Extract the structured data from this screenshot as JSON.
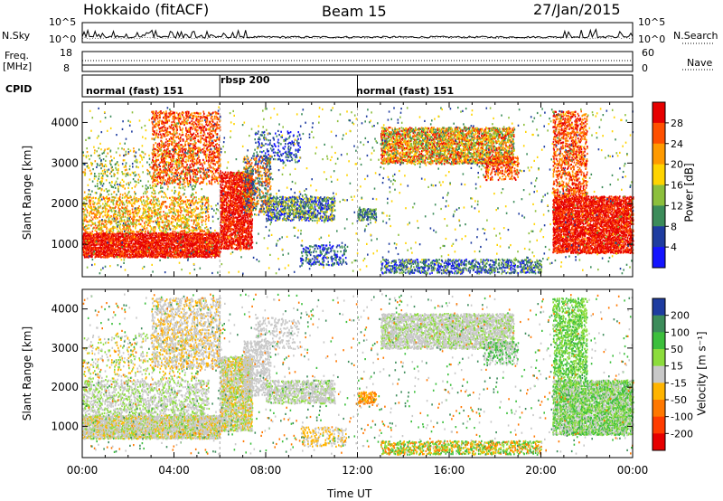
{
  "header": {
    "station": "Hokkaido (fitACF)",
    "beam": "Beam 15",
    "date": "27/Jan/2015"
  },
  "strip_labels": {
    "nsky": "N.Sky",
    "nsearch": "N.Search",
    "freq": "Freq.",
    "freq_unit": "[MHz]",
    "nave": "Nave",
    "cpid": "CPID",
    "nsky_ticks": [
      "10^5",
      "10^0"
    ],
    "nsearch_ticks": [
      "10^5",
      "10^0"
    ],
    "freq_ticks": [
      "18",
      "8"
    ],
    "nave_ticks": [
      "60",
      "0"
    ]
  },
  "cpid_segments": [
    {
      "label": "normal (fast) 151"
    },
    {
      "label": "rbsp 200"
    },
    {
      "label": "normal (fast) 151"
    }
  ],
  "chart_data": [
    {
      "type": "heatmap",
      "name": "power",
      "ylabel": "Slant Range [km]",
      "y_ticks": [
        "1000",
        "2000",
        "3000",
        "4000"
      ],
      "ylim": [
        200,
        4500
      ],
      "colorbar_label": "Power [dB]",
      "colorbar_ticks": [
        "28",
        "24",
        "20",
        "16",
        "12",
        "8",
        "4"
      ],
      "colorbar_colors": [
        "#e60000",
        "#ff5000",
        "#ff9a00",
        "#ffd400",
        "#8cbf3c",
        "#3c8c5a",
        "#1e3ca0",
        "#1414ff"
      ]
    },
    {
      "type": "heatmap",
      "name": "velocity",
      "ylabel": "Slant Range [km]",
      "y_ticks": [
        "1000",
        "2000",
        "3000",
        "4000"
      ],
      "ylim": [
        200,
        4500
      ],
      "colorbar_label": "Velocity [m s⁻¹]",
      "colorbar_ticks": [
        "200",
        "100",
        "50",
        "15",
        "-15",
        "-50",
        "-100",
        "-200"
      ],
      "colorbar_colors": [
        "#1e3ca0",
        "#3c8c5a",
        "#3cbf3c",
        "#8cdc3c",
        "#c8c8c8",
        "#ffb400",
        "#ff7800",
        "#ff3c00",
        "#e60000"
      ]
    }
  ],
  "time_axis": {
    "label": "Time UT",
    "ticks": [
      "00:00",
      "04:00",
      "08:00",
      "12:00",
      "16:00",
      "20:00",
      "00:00"
    ]
  }
}
